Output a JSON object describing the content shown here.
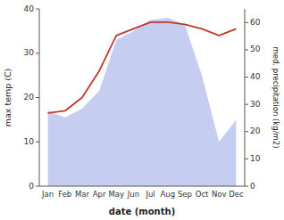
{
  "chart_data": {
    "type": "line",
    "categories": [
      "Jan",
      "Feb",
      "Mar",
      "Apr",
      "May",
      "Jun",
      "Jul",
      "Aug",
      "Sep",
      "Oct",
      "Nov",
      "Dec"
    ],
    "series": [
      {
        "type": "area",
        "color": "#c5cef0",
        "values": [
          17.0,
          15.5,
          17.5,
          21.5,
          33.0,
          35.0,
          37.5,
          38.0,
          36.5,
          25.0,
          10.0,
          15.0
        ]
      },
      {
        "type": "line",
        "color": "#c0392b",
        "values": [
          16.5,
          17.0,
          20.0,
          26.0,
          34.0,
          35.5,
          37.0,
          37.0,
          36.5,
          35.5,
          34.0,
          35.5
        ]
      }
    ],
    "xlabel": "date (month)",
    "ylabel": "max temp (C)",
    "y2label": "med. precipitation (kg/m2)",
    "ylim": [
      0,
      40
    ],
    "yticks": [
      0,
      10,
      20,
      30,
      40
    ],
    "y2lim": [
      0,
      65
    ],
    "y2ticks": [
      0,
      10,
      20,
      30,
      40,
      50,
      60
    ],
    "grid": false
  }
}
